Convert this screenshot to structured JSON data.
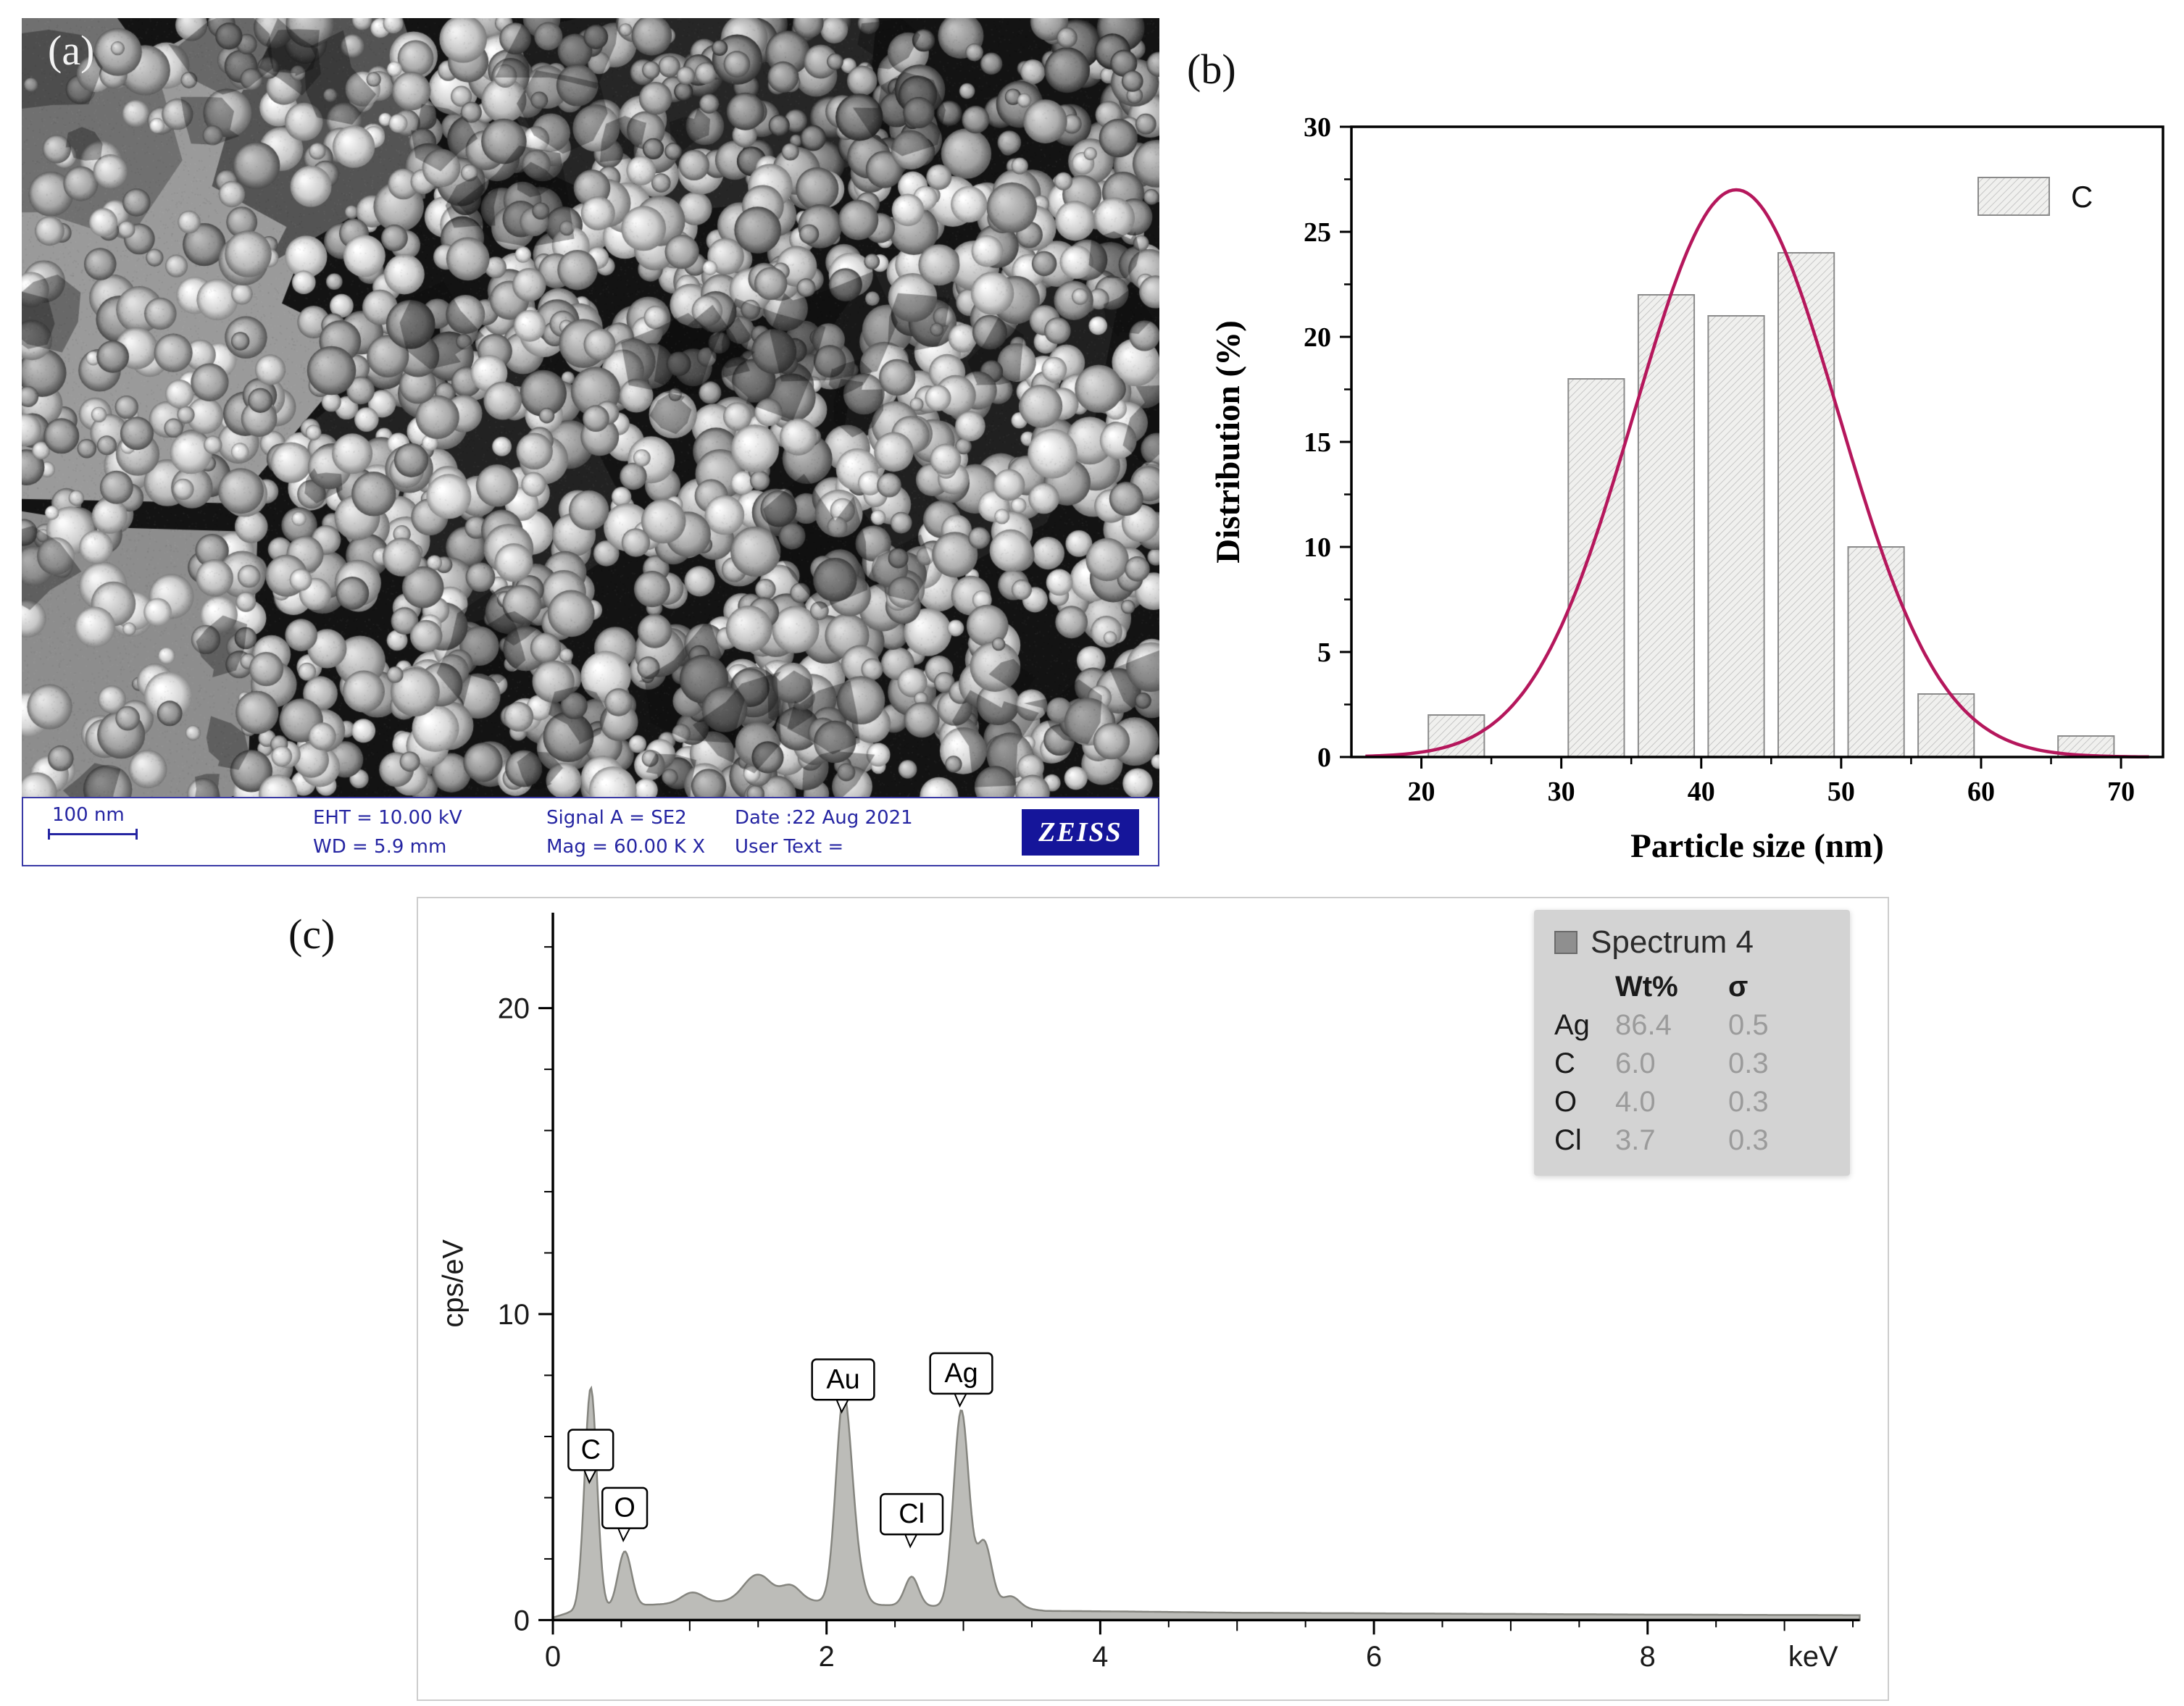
{
  "panels": {
    "a": "(a)",
    "b": "(b)",
    "c": "(c)"
  },
  "sem": {
    "scale_bar": "100 nm",
    "info": {
      "eht": "EHT = 10.00 kV",
      "wd": "WD =  5.9 mm",
      "signal": "Signal A = SE2",
      "mag": "Mag =  60.00 K X",
      "date": "Date :22 Aug 2021",
      "user_text": "User Text =",
      "brand": "ZEISS"
    }
  },
  "chart_data": [
    {
      "id": "particle-size-histogram",
      "type": "bar",
      "title": "",
      "xlabel": "Particle size (nm)",
      "ylabel": "Distribution (%)",
      "xlim": [
        15,
        73
      ],
      "ylim": [
        0,
        30
      ],
      "xticks": [
        20,
        30,
        40,
        50,
        60,
        70
      ],
      "yticks": [
        0,
        5,
        10,
        15,
        20,
        25,
        30
      ],
      "legend": {
        "label": "C",
        "position": "top-right"
      },
      "bins": [
        {
          "from": 20,
          "to": 25,
          "value": 2
        },
        {
          "from": 30,
          "to": 35,
          "value": 18
        },
        {
          "from": 35,
          "to": 40,
          "value": 22
        },
        {
          "from": 40,
          "to": 45,
          "value": 21
        },
        {
          "from": 45,
          "to": 50,
          "value": 24
        },
        {
          "from": 50,
          "to": 55,
          "value": 10
        },
        {
          "from": 55,
          "to": 60,
          "value": 3
        },
        {
          "from": 65,
          "to": 70,
          "value": 1
        }
      ],
      "fit_curve": {
        "type": "gaussian",
        "mean": 42.5,
        "sd": 7.3,
        "peak": 27,
        "color": "#b5175c"
      }
    },
    {
      "id": "eds-spectrum",
      "type": "area",
      "title": "",
      "xlabel": "keV",
      "ylabel": "cps/eV",
      "xlim": [
        0,
        9.55
      ],
      "ylim": [
        0,
        23
      ],
      "xticks": [
        0,
        2,
        4,
        6,
        8
      ],
      "yticks": [
        0,
        10,
        20
      ],
      "fill_color": "#bcbcb8",
      "line_color": "#85857f",
      "baseline": [
        [
          0,
          0.08
        ],
        [
          0.12,
          0.25
        ],
        [
          0.45,
          0.35
        ],
        [
          0.7,
          0.5
        ],
        [
          1.0,
          0.55
        ],
        [
          1.35,
          0.6
        ],
        [
          1.55,
          0.72
        ],
        [
          1.8,
          0.65
        ],
        [
          2.3,
          0.5
        ],
        [
          2.8,
          0.45
        ],
        [
          3.3,
          0.45
        ],
        [
          3.6,
          0.3
        ],
        [
          4.2,
          0.28
        ],
        [
          5,
          0.24
        ],
        [
          6,
          0.22
        ],
        [
          7,
          0.2
        ],
        [
          8,
          0.18
        ],
        [
          9.55,
          0.16
        ]
      ],
      "peaks": [
        {
          "x": 0.277,
          "h": 7.3,
          "w": 0.045
        },
        {
          "x": 0.525,
          "h": 1.85,
          "w": 0.05
        },
        {
          "x": 1.02,
          "h": 0.35,
          "w": 0.08
        },
        {
          "x": 1.49,
          "h": 0.8,
          "w": 0.1
        },
        {
          "x": 1.74,
          "h": 0.45,
          "w": 0.07
        },
        {
          "x": 2.121,
          "h": 6.2,
          "w": 0.055
        },
        {
          "x": 2.2,
          "h": 1.4,
          "w": 0.06
        },
        {
          "x": 2.622,
          "h": 0.95,
          "w": 0.05
        },
        {
          "x": 2.984,
          "h": 6.4,
          "w": 0.055
        },
        {
          "x": 3.151,
          "h": 2.1,
          "w": 0.055
        },
        {
          "x": 3.35,
          "h": 0.35,
          "w": 0.06
        }
      ],
      "peak_labels": [
        {
          "label": "C",
          "x": 0.277,
          "y": 4.9
        },
        {
          "label": "O",
          "x": 0.525,
          "y": 3.0
        },
        {
          "label": "Au",
          "x": 2.121,
          "y": 7.2
        },
        {
          "label": "Cl",
          "x": 2.622,
          "y": 2.8
        },
        {
          "label": "Ag",
          "x": 2.984,
          "y": 7.4
        }
      ],
      "legend": {
        "title": "Spectrum 4",
        "col_headers": [
          "Wt%",
          "σ"
        ],
        "rows": [
          {
            "element": "Ag",
            "wt": "86.4",
            "sigma": "0.5"
          },
          {
            "element": "C",
            "wt": "6.0",
            "sigma": "0.3"
          },
          {
            "element": "O",
            "wt": "4.0",
            "sigma": "0.3"
          },
          {
            "element": "Cl",
            "wt": "3.7",
            "sigma": "0.3"
          }
        ]
      }
    }
  ]
}
